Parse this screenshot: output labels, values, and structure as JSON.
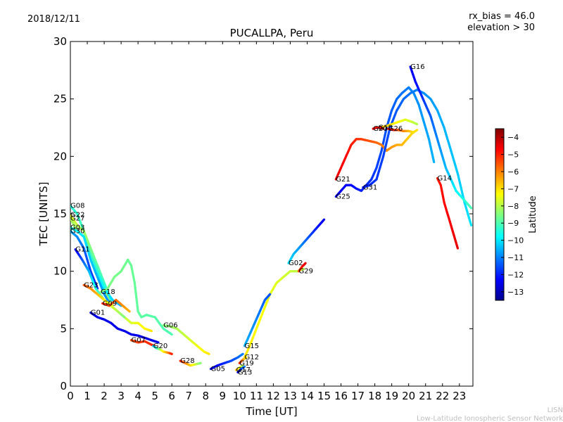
{
  "header": {
    "date": "2018/12/11",
    "title": "PUCALLPA, Peru",
    "rx_bias": "rx_bias = 46.0",
    "elevation": "elevation > 30"
  },
  "watermark": {
    "line1": "LISN",
    "line2": "Low-Latitude Ionospheric Sensor Network"
  },
  "chart_data": {
    "type": "scatter",
    "title": "PUCALLPA, Peru",
    "xlabel": "Time [UT]",
    "ylabel": "TEC [UNITS]",
    "xlim": [
      0,
      23.8
    ],
    "ylim": [
      0,
      30
    ],
    "xticks": [
      0,
      1,
      2,
      3,
      4,
      5,
      6,
      7,
      8,
      9,
      10,
      11,
      12,
      13,
      14,
      15,
      16,
      17,
      18,
      19,
      20,
      21,
      22,
      23
    ],
    "yticks": [
      0,
      5,
      10,
      15,
      20,
      25,
      30
    ],
    "grid": false,
    "colorbar": {
      "label": "Latitude",
      "range": [
        -13.5,
        -3.5
      ],
      "ticks": [
        -4,
        -5,
        -6,
        -7,
        -8,
        -9,
        -10,
        -11,
        -12,
        -13
      ],
      "colormap": [
        "#00008f",
        "#0000ff",
        "#0080ff",
        "#00ffff",
        "#80ff80",
        "#ffff00",
        "#ff8000",
        "#ff0000",
        "#800000"
      ]
    },
    "series": [
      {
        "name": "G08",
        "lat_start": -9.5,
        "lat_end": -7.0,
        "x": [
          0.0,
          0.4,
          0.8,
          1.2,
          1.6,
          2.0,
          2.4,
          2.8,
          3.2,
          3.6,
          4.0,
          4.4,
          4.8
        ],
        "y": [
          15.7,
          15.0,
          13.5,
          11.0,
          9.5,
          8.5,
          7.0,
          6.5,
          6.0,
          5.5,
          5.5,
          5.0,
          4.8
        ]
      },
      {
        "name": "G22",
        "lat_start": -7.5,
        "lat_end": -9.5,
        "x": [
          0.0,
          0.4,
          0.8,
          1.2,
          1.6,
          2.0,
          2.4
        ],
        "y": [
          14.9,
          14.0,
          13.5,
          12.0,
          10.5,
          9.0,
          7.5
        ]
      },
      {
        "name": "G27",
        "lat_start": -8.0,
        "lat_end": -10.5,
        "x": [
          0.0,
          0.4,
          0.8,
          1.2,
          1.6,
          2.0,
          2.5,
          3.0
        ],
        "y": [
          14.6,
          13.5,
          13.0,
          11.5,
          10.0,
          8.5,
          7.5,
          7.0
        ]
      },
      {
        "name": "G03",
        "lat_start": -9.5,
        "lat_end": -11.0,
        "x": [
          0.0,
          0.4,
          0.8,
          1.2,
          1.6,
          2.0,
          2.4
        ],
        "y": [
          13.8,
          13.5,
          13.0,
          11.0,
          9.5,
          8.0,
          7.0
        ]
      },
      {
        "name": "G30",
        "lat_start": -10.5,
        "lat_end": -12.0,
        "x": [
          0.0,
          0.4,
          0.8,
          1.2,
          1.6
        ],
        "y": [
          13.5,
          13.0,
          12.0,
          10.0,
          8.5
        ]
      },
      {
        "name": "G11",
        "lat_start": -12.5,
        "lat_end": -7.5,
        "x": [
          0.3,
          0.7,
          1.1,
          1.5,
          2.0,
          2.5
        ],
        "y": [
          11.9,
          11.0,
          10.0,
          8.5,
          7.5,
          7.0
        ]
      },
      {
        "name": "G23",
        "lat_start": -5.5,
        "lat_end": -8.5,
        "x": [
          0.8,
          1.2,
          1.6,
          2.0,
          2.4,
          2.8,
          3.2
        ],
        "y": [
          8.8,
          8.5,
          8.0,
          7.5,
          7.0,
          6.5,
          6.0
        ]
      },
      {
        "name": "G18",
        "lat_start": -8.5,
        "lat_end": -9.0,
        "x": [
          1.8,
          2.2,
          2.6,
          3.0,
          3.4,
          3.6,
          3.8,
          4.0,
          4.2,
          4.5,
          5.0,
          5.5,
          6.0
        ],
        "y": [
          8.2,
          8.5,
          9.5,
          10.0,
          11.0,
          10.5,
          9.0,
          6.5,
          6.0,
          6.2,
          6.0,
          5.0,
          4.5
        ]
      },
      {
        "name": "G09",
        "lat_start": -5.0,
        "lat_end": -6.5,
        "x": [
          1.9,
          2.3,
          2.7,
          3.1,
          3.5
        ],
        "y": [
          7.2,
          7.0,
          7.5,
          7.0,
          6.5
        ]
      },
      {
        "name": "G01",
        "lat_start": -12.5,
        "lat_end": -12.5,
        "x": [
          1.2,
          1.6,
          2.0,
          2.4,
          2.8,
          3.2,
          3.6,
          4.0,
          4.4,
          4.8,
          5.2
        ],
        "y": [
          6.4,
          6.0,
          5.8,
          5.5,
          5.0,
          4.8,
          4.5,
          4.4,
          4.2,
          4.0,
          3.8
        ]
      },
      {
        "name": "G07",
        "lat_start": -5.5,
        "lat_end": -5.0,
        "x": [
          3.6,
          4.0,
          4.4,
          4.8,
          5.0
        ],
        "y": [
          4.0,
          3.8,
          3.9,
          3.6,
          3.5
        ]
      },
      {
        "name": "G20",
        "lat_start": -10.5,
        "lat_end": -5.0,
        "x": [
          4.9,
          5.1,
          5.3,
          5.5,
          5.8,
          6.0
        ],
        "y": [
          3.5,
          3.3,
          3.2,
          3.0,
          2.9,
          2.8
        ]
      },
      {
        "name": "G06",
        "lat_start": -8.5,
        "lat_end": -7.0,
        "x": [
          5.5,
          5.9,
          6.3,
          6.7,
          7.1,
          7.5,
          7.9,
          8.2
        ],
        "y": [
          5.3,
          5.2,
          5.0,
          4.5,
          4.0,
          3.5,
          3.0,
          2.8
        ]
      },
      {
        "name": "G28",
        "lat_start": -5.0,
        "lat_end": -8.5,
        "x": [
          6.5,
          6.8,
          7.1,
          7.4,
          7.7
        ],
        "y": [
          2.2,
          2.0,
          1.8,
          1.9,
          2.0
        ]
      },
      {
        "name": "G05",
        "lat_start": -12.5,
        "lat_end": -11.0,
        "x": [
          8.3,
          8.7,
          9.1,
          9.5,
          9.9,
          10.2
        ],
        "y": [
          1.5,
          1.8,
          2.0,
          2.2,
          2.5,
          2.8
        ]
      },
      {
        "name": "G19",
        "lat_start": -5.0,
        "lat_end": -7.0,
        "x": [
          10.0,
          10.2,
          10.4
        ],
        "y": [
          2.0,
          2.3,
          2.5
        ]
      },
      {
        "name": "G17",
        "lat_start": -6.5,
        "lat_end": -8.0,
        "x": [
          9.8,
          10.0,
          10.2
        ],
        "y": [
          1.4,
          1.6,
          1.8
        ]
      },
      {
        "name": "G13",
        "lat_start": -12.5,
        "lat_end": -11.0,
        "x": [
          9.9,
          10.1,
          10.3
        ],
        "y": [
          1.2,
          1.5,
          1.7
        ]
      },
      {
        "name": "G12",
        "lat_start": -7.0,
        "lat_end": -8.0,
        "x": [
          10.3,
          10.6,
          11.0,
          11.4,
          11.8,
          12.2,
          12.6,
          13.0,
          13.4,
          13.8
        ],
        "y": [
          2.5,
          3.5,
          5.0,
          6.5,
          8.0,
          9.0,
          9.5,
          10.0,
          10.0,
          10.2
        ]
      },
      {
        "name": "G15",
        "lat_start": -10.5,
        "lat_end": -11.5,
        "x": [
          10.3,
          10.6,
          10.9,
          11.2,
          11.5,
          11.8
        ],
        "y": [
          3.5,
          4.5,
          5.5,
          6.5,
          7.5,
          8.0
        ]
      },
      {
        "name": "G02",
        "lat_start": -10.0,
        "lat_end": -12.5,
        "x": [
          12.9,
          13.2,
          13.5,
          13.8,
          14.1,
          14.4,
          14.7,
          15.0
        ],
        "y": [
          10.7,
          11.5,
          12.0,
          12.5,
          13.0,
          13.5,
          14.0,
          14.5
        ]
      },
      {
        "name": "G29",
        "lat_start": -5.5,
        "lat_end": -4.5,
        "x": [
          13.5,
          13.7,
          13.9
        ],
        "y": [
          10.0,
          10.4,
          10.7
        ]
      },
      {
        "name": "G25",
        "lat_start": -12.5,
        "lat_end": -10.5,
        "x": [
          15.7,
          16.0,
          16.3,
          16.6,
          16.9,
          17.2,
          17.5,
          17.8,
          18.1,
          18.4,
          18.7,
          19.0,
          19.3,
          19.6,
          20.0,
          20.3,
          20.6,
          20.9,
          21.2,
          21.5
        ],
        "y": [
          16.5,
          17.0,
          17.5,
          17.5,
          17.2,
          17.0,
          17.5,
          18.0,
          19.0,
          20.5,
          22.5,
          24.0,
          25.0,
          25.5,
          26.0,
          25.5,
          24.5,
          23.0,
          21.5,
          19.5
        ]
      },
      {
        "name": "G21",
        "lat_start": -4.5,
        "lat_end": -7.0,
        "x": [
          15.7,
          16.0,
          16.3,
          16.6,
          16.9,
          17.2,
          17.5,
          17.8,
          18.1,
          18.4,
          18.7,
          19.0,
          19.3,
          19.6,
          19.9,
          20.2,
          20.5
        ],
        "y": [
          18.0,
          19.0,
          20.0,
          21.0,
          21.5,
          21.5,
          21.4,
          21.3,
          21.2,
          21.0,
          20.5,
          20.8,
          21.0,
          21.0,
          21.5,
          22.0,
          22.3
        ]
      },
      {
        "name": "G31",
        "lat_start": -12.0,
        "lat_end": -10.0,
        "x": [
          17.3,
          17.7,
          18.1,
          18.5,
          18.9,
          19.3,
          19.7,
          20.1,
          20.5,
          20.9,
          21.3,
          21.7,
          22.1,
          22.5,
          22.9,
          23.3,
          23.7
        ],
        "y": [
          17.3,
          17.5,
          18.0,
          20.0,
          22.5,
          24.0,
          25.0,
          25.5,
          25.8,
          25.5,
          25.0,
          24.0,
          22.5,
          20.5,
          18.5,
          16.0,
          14.0
        ]
      },
      {
        "name": "G10",
        "lat_start": -6.5,
        "lat_end": -8.0,
        "x": [
          18.2,
          18.6,
          19.0,
          19.4,
          19.8,
          20.2,
          20.5
        ],
        "y": [
          22.5,
          22.6,
          22.8,
          23.0,
          23.2,
          23.0,
          22.8
        ]
      },
      {
        "name": "G20",
        "lat_start": -4.5,
        "lat_end": -4.5,
        "x": [
          17.9,
          18.1,
          18.3,
          18.5
        ],
        "y": [
          22.4,
          22.5,
          22.5,
          22.4
        ]
      },
      {
        "name": "G26",
        "lat_start": -4.5,
        "lat_end": -7.0,
        "x": [
          18.8,
          19.1,
          19.4,
          19.7,
          20.0,
          20.3
        ],
        "y": [
          22.4,
          22.3,
          22.3,
          22.2,
          22.2,
          22.1
        ]
      },
      {
        "name": "G16",
        "lat_start": -12.5,
        "lat_end": -9.0,
        "x": [
          20.1,
          20.4,
          20.7,
          21.0,
          21.3,
          21.6,
          21.9,
          22.2,
          22.5,
          22.8,
          23.1,
          23.4,
          23.7
        ],
        "y": [
          27.8,
          26.5,
          25.5,
          24.5,
          23.5,
          22.0,
          20.5,
          19.0,
          18.0,
          17.0,
          16.5,
          16.0,
          15.5
        ]
      },
      {
        "name": "G14",
        "lat_start": -5.0,
        "lat_end": -4.5,
        "x": [
          21.7,
          21.9,
          22.1,
          22.3,
          22.5,
          22.7,
          22.9
        ],
        "y": [
          18.1,
          17.5,
          16.0,
          15.0,
          14.0,
          13.0,
          12.0
        ]
      }
    ]
  }
}
